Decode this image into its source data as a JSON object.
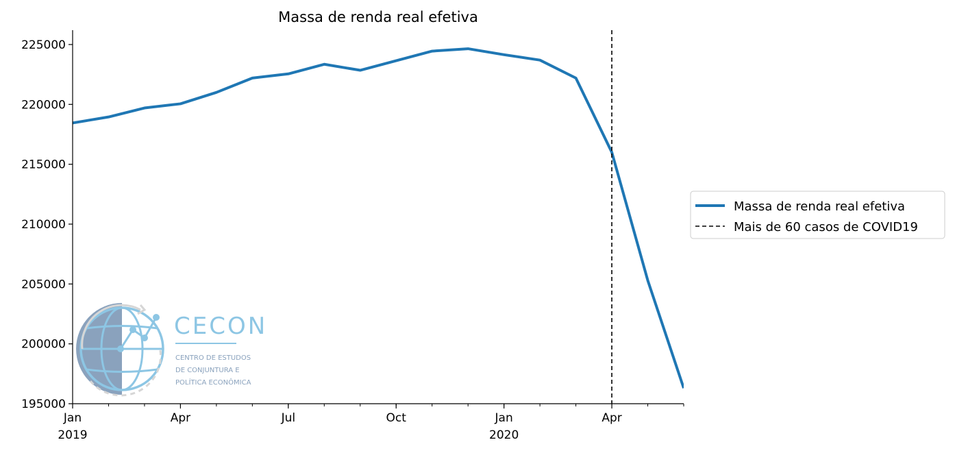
{
  "chart_data": {
    "type": "line",
    "title": "Massa de renda real efetiva",
    "xlabel": "",
    "ylabel": "",
    "x": [
      "2019-01",
      "2019-02",
      "2019-03",
      "2019-04",
      "2019-05",
      "2019-06",
      "2019-07",
      "2019-08",
      "2019-09",
      "2019-10",
      "2019-11",
      "2019-12",
      "2020-01",
      "2020-02",
      "2020-03",
      "2020-04",
      "2020-05",
      "2020-06"
    ],
    "series": [
      {
        "name": "Massa de renda real efetiva",
        "color": "#1f77b4",
        "values": [
          218450,
          218950,
          219700,
          220050,
          221000,
          222200,
          222550,
          223350,
          222850,
          223650,
          224450,
          224650,
          224150,
          223700,
          222200,
          216000,
          205300,
          196300
        ]
      }
    ],
    "vline": {
      "name": "Mais de 60 casos de COVID19",
      "x": "2020-04",
      "color": "#000000",
      "style": "dashed"
    },
    "ylim": [
      195000,
      226200
    ],
    "yticks": [
      195000,
      200000,
      205000,
      210000,
      215000,
      220000,
      225000
    ],
    "ytick_labels": [
      "195000",
      "200000",
      "205000",
      "210000",
      "215000",
      "220000",
      "225000"
    ],
    "xticks_major": [
      {
        "x": "2019-01",
        "label": "Jan",
        "label2": "2019"
      },
      {
        "x": "2019-04",
        "label": "Apr",
        "label2": ""
      },
      {
        "x": "2019-07",
        "label": "Jul",
        "label2": ""
      },
      {
        "x": "2019-10",
        "label": "Oct",
        "label2": ""
      },
      {
        "x": "2020-01",
        "label": "Jan",
        "label2": "2020"
      },
      {
        "x": "2020-04",
        "label": "Apr",
        "label2": ""
      }
    ],
    "legend": {
      "placement": "right",
      "entries": [
        "Massa de renda real efetiva",
        "Mais de 60 casos de COVID19"
      ]
    },
    "grid": false
  },
  "logo": {
    "name": "CECON",
    "subtitle_lines": [
      "CENTRO DE ESTUDOS",
      "DE CONJUNTURA E",
      "POLÍTICA ECONÔMICA"
    ]
  }
}
